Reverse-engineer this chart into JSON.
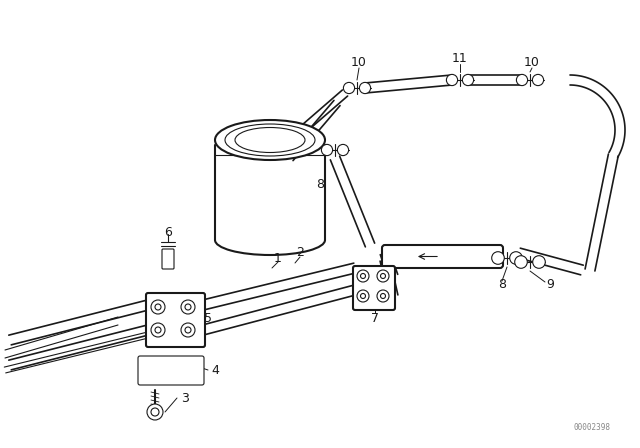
{
  "background_color": "#ffffff",
  "line_color": "#1a1a1a",
  "text_color": "#1a1a1a",
  "watermark": "00002398",
  "lw_main": 1.5,
  "lw_tube": 1.2,
  "lw_thin": 0.8
}
